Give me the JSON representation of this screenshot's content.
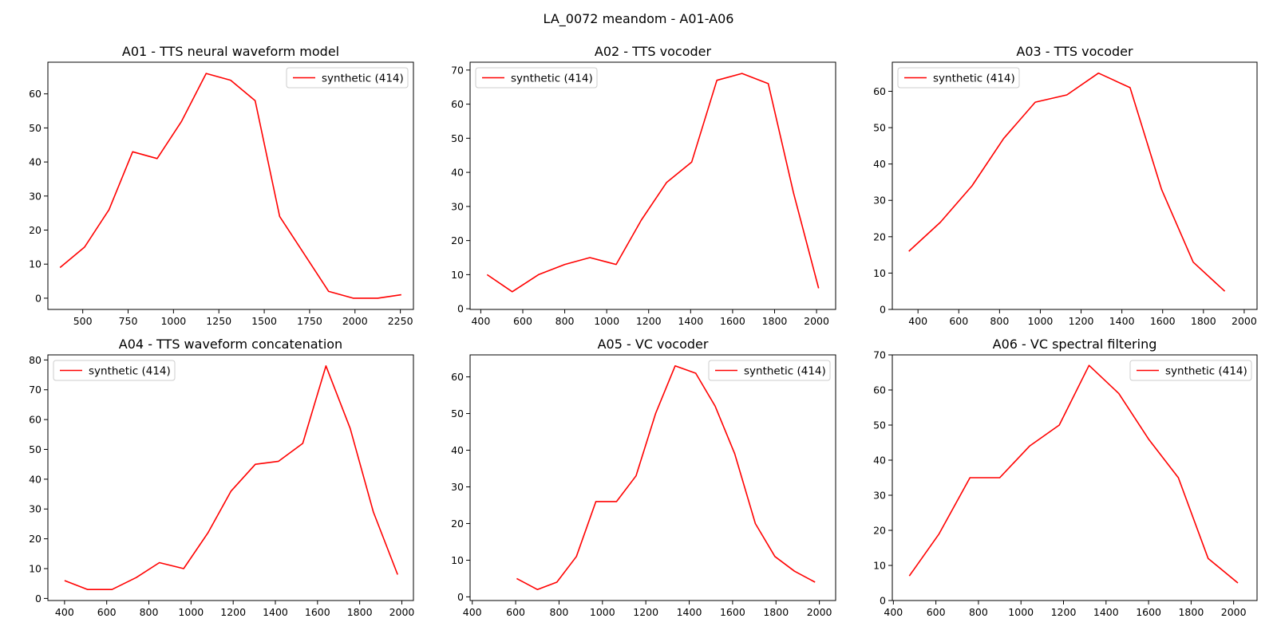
{
  "figure": {
    "suptitle": "LA_0072 meandom - A01-A06"
  },
  "chart_data": [
    {
      "type": "line",
      "title": "A01 - TTS neural waveform model",
      "xlabel": "",
      "ylabel": "",
      "xlim": [
        308,
        2322
      ],
      "ylim": [
        -3.3,
        69.3
      ],
      "xticks": [
        500,
        750,
        1000,
        1250,
        1500,
        1750,
        2000,
        2250
      ],
      "yticks": [
        0,
        10,
        20,
        30,
        40,
        50,
        60
      ],
      "legend": "upper right",
      "series": [
        {
          "name": "synthetic (414)",
          "color": "#ff0000",
          "x": [
            375,
            510,
            645,
            775,
            910,
            1045,
            1180,
            1315,
            1450,
            1585,
            1720,
            1855,
            1990,
            2125,
            2255
          ],
          "y": [
            9,
            15,
            26,
            43,
            41,
            52,
            66,
            64,
            58,
            24,
            13,
            2,
            0,
            0,
            1
          ]
        }
      ]
    },
    {
      "type": "line",
      "title": "A02 - TTS vocoder",
      "xlabel": "",
      "ylabel": "",
      "xlim": [
        349,
        2091
      ],
      "ylim": [
        -0.2,
        72.3
      ],
      "xticks": [
        400,
        600,
        800,
        1000,
        1200,
        1400,
        1600,
        1800,
        2000
      ],
      "yticks": [
        0,
        10,
        20,
        30,
        40,
        50,
        60,
        70
      ],
      "legend": "upper left",
      "series": [
        {
          "name": "synthetic (414)",
          "color": "#ff0000",
          "x": [
            430,
            550,
            675,
            800,
            920,
            1045,
            1165,
            1285,
            1405,
            1525,
            1645,
            1770,
            1890,
            2010
          ],
          "y": [
            10,
            5,
            10,
            13,
            15,
            13,
            26,
            37,
            43,
            67,
            69,
            66,
            34,
            6
          ]
        }
      ]
    },
    {
      "type": "line",
      "title": "A03 - TTS vocoder",
      "xlabel": "",
      "ylabel": "",
      "xlim": [
        274,
        2063
      ],
      "ylim": [
        0.0,
        68.0
      ],
      "xticks": [
        400,
        600,
        800,
        1000,
        1200,
        1400,
        1600,
        1800,
        2000
      ],
      "yticks": [
        0,
        10,
        20,
        30,
        40,
        50,
        60
      ],
      "legend": "upper left",
      "series": [
        {
          "name": "synthetic (414)",
          "color": "#ff0000",
          "x": [
            355,
            510,
            665,
            820,
            975,
            1130,
            1285,
            1440,
            1595,
            1750,
            1905
          ],
          "y": [
            16,
            24,
            34,
            47,
            57,
            59,
            65,
            61,
            33,
            13,
            5
          ]
        }
      ]
    },
    {
      "type": "line",
      "title": "A04 - TTS waveform concatenation",
      "xlabel": "",
      "ylabel": "",
      "xlim": [
        321,
        2055
      ],
      "ylim": [
        -0.7,
        81.7
      ],
      "xticks": [
        400,
        600,
        800,
        1000,
        1200,
        1400,
        1600,
        1800,
        2000
      ],
      "yticks": [
        0,
        10,
        20,
        30,
        40,
        50,
        60,
        70,
        80
      ],
      "legend": "upper left",
      "series": [
        {
          "name": "synthetic (414)",
          "color": "#ff0000",
          "x": [
            400,
            510,
            625,
            740,
            850,
            965,
            1080,
            1190,
            1305,
            1415,
            1530,
            1640,
            1755,
            1865,
            1980
          ],
          "y": [
            6,
            3,
            3,
            7,
            12,
            10,
            22,
            36,
            45,
            46,
            52,
            78,
            57,
            29,
            8
          ]
        }
      ]
    },
    {
      "type": "line",
      "title": "A05 - VC vocoder",
      "xlabel": "",
      "ylabel": "",
      "xlim": [
        390,
        2075
      ],
      "ylim": [
        -1.0,
        66.0
      ],
      "xticks": [
        400,
        600,
        800,
        1000,
        1200,
        1400,
        1600,
        1800,
        2000
      ],
      "yticks": [
        0,
        10,
        20,
        30,
        40,
        50,
        60
      ],
      "legend": "upper right",
      "series": [
        {
          "name": "synthetic (414)",
          "color": "#ff0000",
          "x": [
            605,
            700,
            790,
            880,
            970,
            1065,
            1155,
            1245,
            1335,
            1430,
            1520,
            1610,
            1705,
            1795,
            1885,
            1980
          ],
          "y": [
            5,
            2,
            4,
            11,
            26,
            26,
            33,
            50,
            63,
            61,
            52,
            39,
            20,
            11,
            7,
            4
          ]
        }
      ]
    },
    {
      "type": "line",
      "title": "A06 - VC spectral filtering",
      "xlabel": "",
      "ylabel": "",
      "xlim": [
        395,
        2110
      ],
      "ylim": [
        0.0,
        70.0
      ],
      "xticks": [
        400,
        600,
        800,
        1000,
        1200,
        1400,
        1600,
        1800,
        2000
      ],
      "yticks": [
        0,
        10,
        20,
        30,
        40,
        50,
        60,
        70
      ],
      "legend": "upper right",
      "series": [
        {
          "name": "synthetic (414)",
          "color": "#ff0000",
          "x": [
            475,
            615,
            760,
            900,
            1040,
            1180,
            1320,
            1460,
            1600,
            1740,
            1880,
            2020
          ],
          "y": [
            7,
            19,
            35,
            35,
            44,
            50,
            67,
            59,
            46,
            35,
            12,
            5
          ]
        }
      ]
    }
  ]
}
